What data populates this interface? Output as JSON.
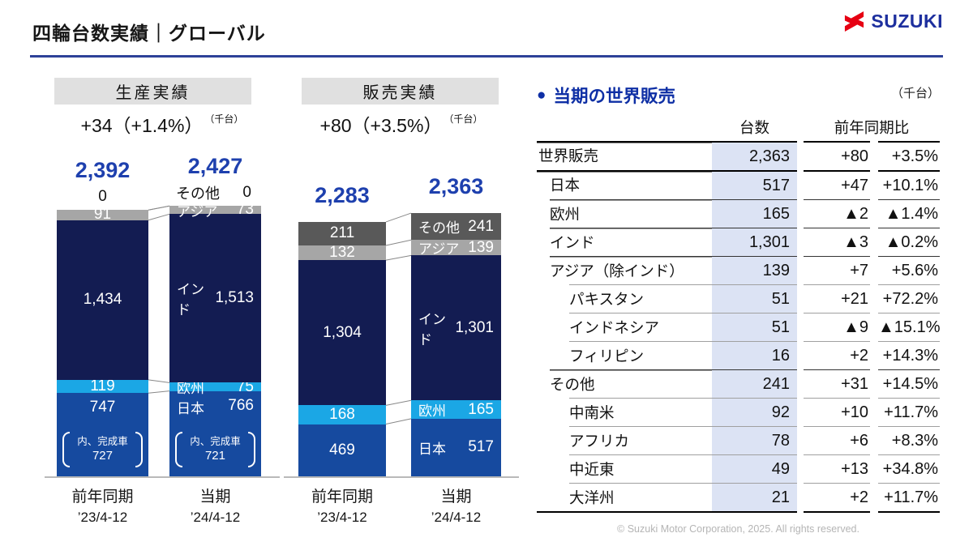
{
  "header": {
    "title": "四輪台数実績｜グローバル",
    "brand": "SUZUKI"
  },
  "colors": {
    "accent_blue": "#1e40ae",
    "table_title_blue": "#0e2fa5",
    "underline_blue": "#2d4198",
    "logo_red": "#e60012",
    "logo_blue": "#1d2f9e",
    "lavender_column": "#dce3f4",
    "panel_gray": "#e0e0e0",
    "japan_blue": "#164a9f",
    "europe_cyan": "#1ba7e5",
    "india_navy": "#131c52",
    "asia_gray": "#a6a6a6",
    "other_gray": "#595959"
  },
  "chart_data": [
    {
      "type": "bar",
      "stacked": true,
      "title": "生産実績",
      "change_label": "+34（+1.4%）",
      "unit": "（千台）",
      "categories": [
        [
          "前年同期",
          "’23/4-12"
        ],
        [
          "当期",
          "’24/4-12"
        ]
      ],
      "totals": [
        2392,
        2427
      ],
      "ylim": [
        0,
        2600
      ],
      "series": [
        {
          "name": "日本",
          "values": [
            747,
            766
          ],
          "color": "#164a9f"
        },
        {
          "name": "欧州",
          "values": [
            119,
            75
          ],
          "color": "#1ba7e5"
        },
        {
          "name": "インド",
          "values": [
            1434,
            1513
          ],
          "color": "#131c52"
        },
        {
          "name": "アジア",
          "values": [
            91,
            73
          ],
          "color": "#a6a6a6"
        },
        {
          "name": "その他",
          "values": [
            0,
            0
          ],
          "color": "#595959"
        }
      ],
      "annotations": [
        {
          "series": "日本",
          "label": "内、完成車",
          "values": [
            727,
            721
          ]
        }
      ]
    },
    {
      "type": "bar",
      "stacked": true,
      "title": "販売実績",
      "change_label": "+80（+3.5%）",
      "unit": "（千台）",
      "categories": [
        [
          "前年同期",
          "’23/4-12"
        ],
        [
          "当期",
          "’24/4-12"
        ]
      ],
      "totals": [
        2283,
        2363
      ],
      "ylim": [
        0,
        2600
      ],
      "series": [
        {
          "name": "日本",
          "values": [
            469,
            517
          ],
          "color": "#164a9f"
        },
        {
          "name": "欧州",
          "values": [
            168,
            165
          ],
          "color": "#1ba7e5"
        },
        {
          "name": "インド",
          "values": [
            1304,
            1301
          ],
          "color": "#131c52"
        },
        {
          "name": "アジア",
          "values": [
            132,
            139
          ],
          "color": "#a6a6a6"
        },
        {
          "name": "その他",
          "values": [
            211,
            241
          ],
          "color": "#595959"
        }
      ],
      "annotations": []
    }
  ],
  "table": {
    "title": "当期の世界販売",
    "unit": "（千台）",
    "columns": {
      "volume": "台数",
      "yoy": "前年同期比"
    },
    "rows": [
      {
        "label": "世界販売",
        "volume": "2,363",
        "yoy": "+80",
        "pct": "+3.5%",
        "indent": 0,
        "sep": "thick"
      },
      {
        "label": "日本",
        "volume": "517",
        "yoy": "+47",
        "pct": "+10.1%",
        "indent": 1,
        "sep": "thick"
      },
      {
        "label": "欧州",
        "volume": "165",
        "yoy": "▲2",
        "pct": "▲1.4%",
        "indent": 1,
        "sep": "main"
      },
      {
        "label": "インド",
        "volume": "1,301",
        "yoy": "▲3",
        "pct": "▲0.2%",
        "indent": 1,
        "sep": "main"
      },
      {
        "label": "アジア（除インド）",
        "volume": "139",
        "yoy": "+7",
        "pct": "+5.6%",
        "indent": 1,
        "sep": "main"
      },
      {
        "label": "パキスタン",
        "volume": "51",
        "yoy": "+21",
        "pct": "+72.2%",
        "indent": 2,
        "sep": "sub"
      },
      {
        "label": "インドネシア",
        "volume": "51",
        "yoy": "▲9",
        "pct": "▲15.1%",
        "indent": 2,
        "sep": "sub"
      },
      {
        "label": "フィリピン",
        "volume": "16",
        "yoy": "+2",
        "pct": "+14.3%",
        "indent": 2,
        "sep": "sub"
      },
      {
        "label": "その他",
        "volume": "241",
        "yoy": "+31",
        "pct": "+14.5%",
        "indent": 1,
        "sep": "main"
      },
      {
        "label": "中南米",
        "volume": "92",
        "yoy": "+10",
        "pct": "+11.7%",
        "indent": 2,
        "sep": "sub"
      },
      {
        "label": "アフリカ",
        "volume": "78",
        "yoy": "+6",
        "pct": "+8.3%",
        "indent": 2,
        "sep": "sub"
      },
      {
        "label": "中近東",
        "volume": "49",
        "yoy": "+13",
        "pct": "+34.8%",
        "indent": 2,
        "sep": "sub"
      },
      {
        "label": "大洋州",
        "volume": "21",
        "yoy": "+2",
        "pct": "+11.7%",
        "indent": 2,
        "sep": "sub"
      }
    ]
  },
  "footer": {
    "copyright": "© Suzuki Motor Corporation, 2025. All rights reserved."
  }
}
